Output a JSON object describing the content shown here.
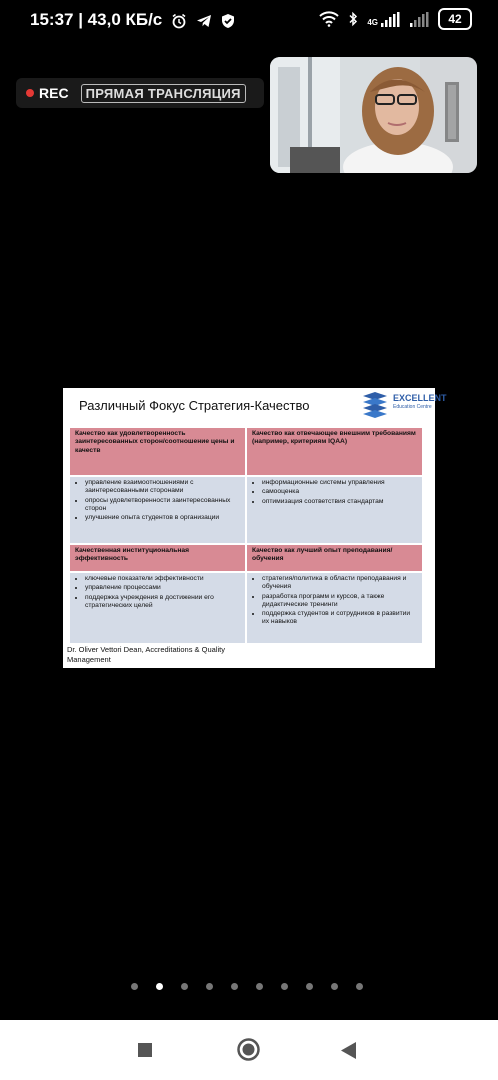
{
  "status_bar": {
    "time_speed": "15:37 | 43,0 КБ/с",
    "net_type": "4G",
    "battery": "42"
  },
  "live": {
    "rec_label": "REC",
    "live_label": "ПРЯМАЯ ТРАНСЛЯЦИЯ"
  },
  "slide": {
    "title": "Различный Фокус Стратегия-Качество",
    "logo_text": "EXCELLENT",
    "logo_subtext": "Education Centre",
    "q1_title": "Качество как удовлетворенность заинтересованных сторон/соотношение цены и качеств",
    "q1_items": [
      "управление взаимоотношениями с заинтересованными сторонами",
      "опросы удовлетворенности заинтересованных сторон",
      "улучшение опыта студентов в организации"
    ],
    "q2_title": "Качество как отвечающее внешним требованиям (например, критериям IQAA)",
    "q2_items": [
      "информационные системы управления",
      "самооценка",
      "оптимизация соответствия стандартам"
    ],
    "q3_title": "Качественная институциональная эффективность",
    "q3_items": [
      "ключевые показатели эффективности",
      "управление процессами",
      "поддержка учреждения в достижении его стратегических целей"
    ],
    "q4_title": "Качество как лучший опыт преподавания/обучения",
    "q4_items": [
      "стратегия/политика в области преподавания и обучения",
      "разработка программ и курсов, а также дидактические тренинги",
      "поддержка студентов и сотрудников в развитии их навыков"
    ],
    "footer": "Dr. Oliver Vettori Dean, Accreditations & Quality Management"
  },
  "pager": {
    "count": 10,
    "active_index": 1
  },
  "colors": {
    "header_pink": "#d88a94",
    "body_blue": "#d4dbe7",
    "logo_blue": "#2f5ea8",
    "rec_red": "#e53935"
  }
}
